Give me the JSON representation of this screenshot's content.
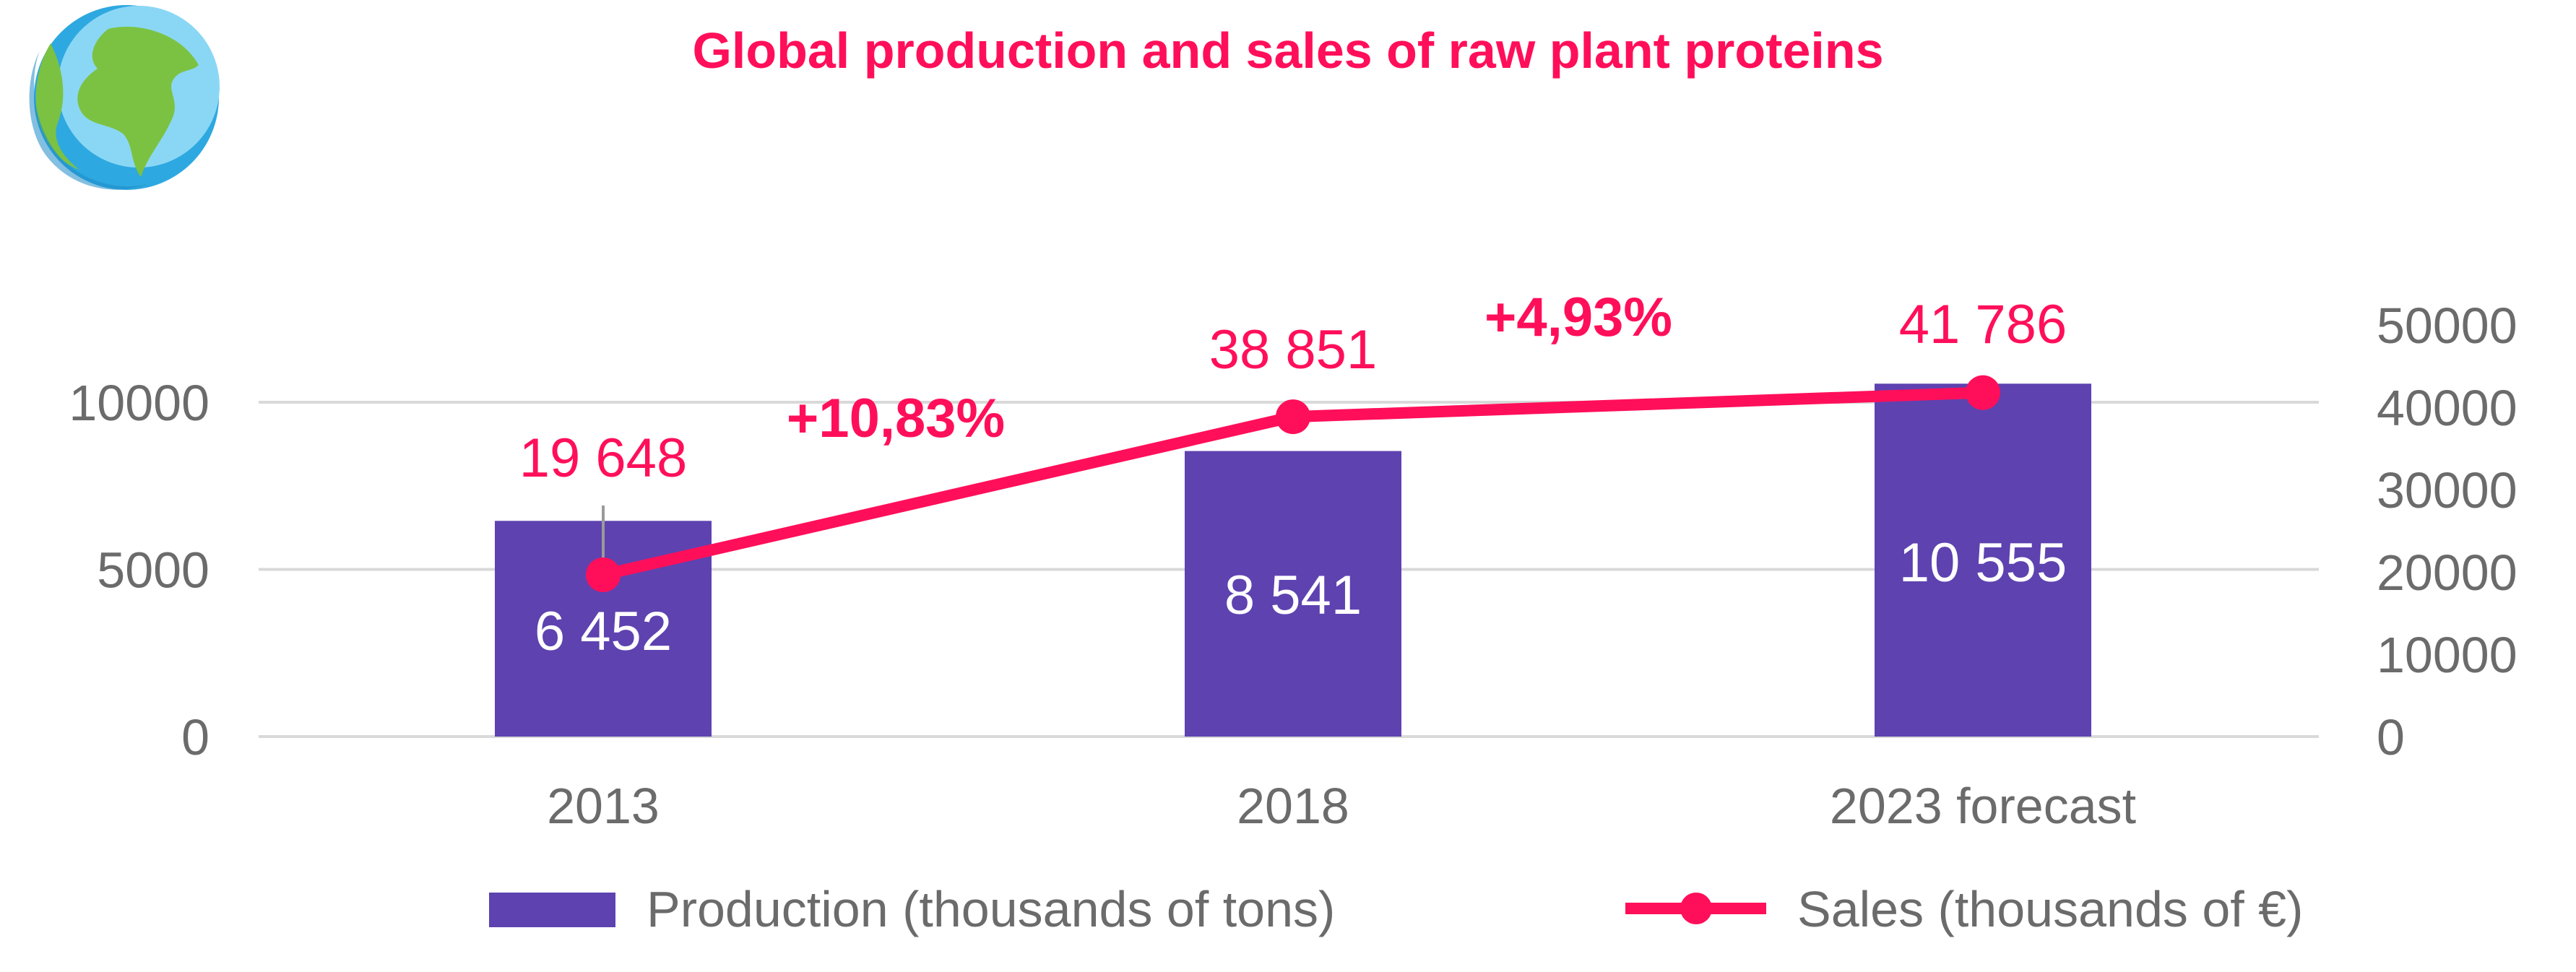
{
  "colors": {
    "accent": "#ff0f5a",
    "bar": "#5e42b0",
    "axis_text": "#6b6b6b",
    "grid": "#d9d9d9",
    "bar_label": "#ffffff",
    "leader_line": "#9a9a9a"
  },
  "icon": {
    "name": "globe-icon"
  },
  "chart_data": {
    "type": "bar",
    "title": "Global production and sales of raw plant proteins",
    "categories": [
      "2013",
      "2018",
      "2023 forecast"
    ],
    "series": [
      {
        "name": "Production (thousands of tons)",
        "type": "bar",
        "axis": "left",
        "values": [
          6452,
          8541,
          10555
        ],
        "labels": [
          "6 452",
          "8 541",
          "10 555"
        ]
      },
      {
        "name": "Sales (thousands of €)",
        "type": "line",
        "axis": "right",
        "values": [
          19648,
          38851,
          41786
        ],
        "labels": [
          "19 648",
          "38 851",
          "41 786"
        ]
      }
    ],
    "growth_annotations": [
      "+10,83%",
      "+4,93%"
    ],
    "y_left": {
      "ticks": [
        0,
        5000,
        10000
      ],
      "ylim": [
        0,
        10000
      ]
    },
    "y_right": {
      "ticks": [
        0,
        10000,
        20000,
        30000,
        40000,
        50000
      ],
      "ylim": [
        0,
        50000
      ]
    },
    "grid": true,
    "legend_position": "bottom"
  }
}
